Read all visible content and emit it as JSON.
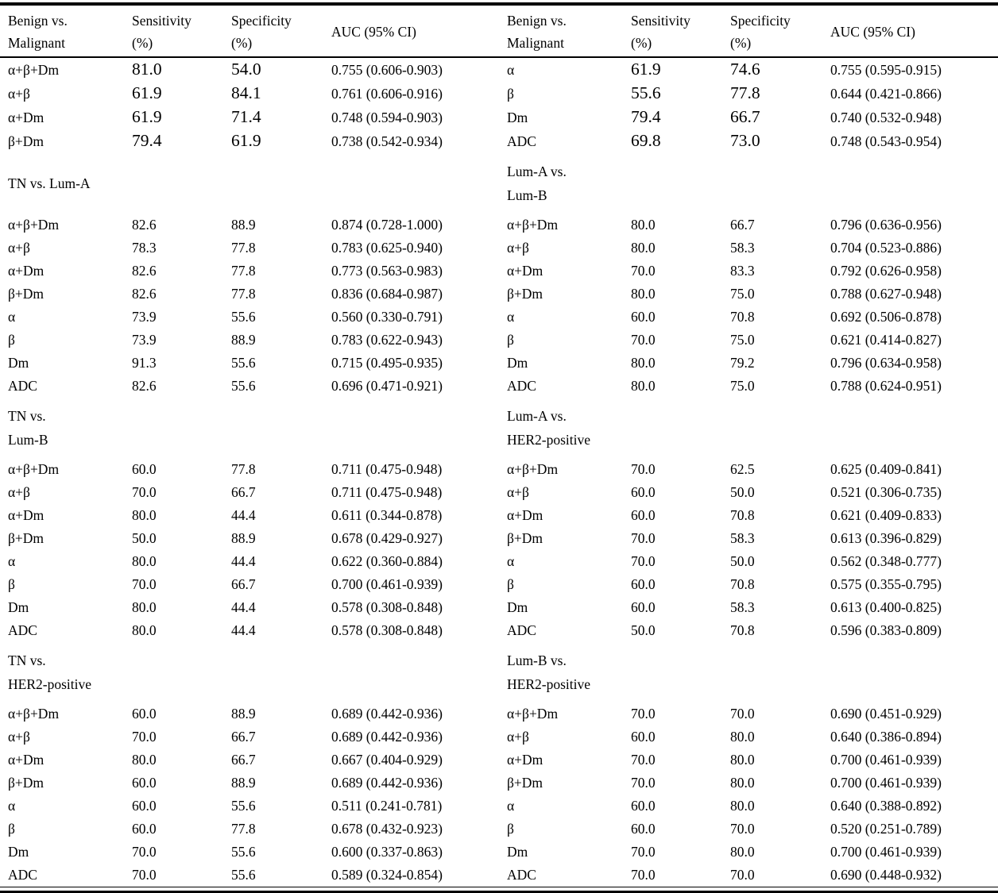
{
  "table": {
    "header": {
      "comparison_line1": "Benign vs.",
      "comparison_line2": "Malignant",
      "sensitivity_line1": "Sensitivity",
      "sensitivity_unit": "(%)",
      "specificity_line1": "Specificity",
      "specificity_unit": "(%)",
      "auc": "AUC (95% CI)"
    },
    "sections": [
      {
        "large_values": true,
        "left": {
          "label_lines": [],
          "rows": [
            [
              "α+β+Dm",
              "81.0",
              "54.0",
              "0.755 (0.606-0.903)"
            ],
            [
              "α+β",
              "61.9",
              "84.1",
              "0.761 (0.606-0.916)"
            ],
            [
              "α+Dm",
              "61.9",
              "71.4",
              "0.748 (0.594-0.903)"
            ],
            [
              "β+Dm",
              "79.4",
              "61.9",
              "0.738 (0.542-0.934)"
            ]
          ]
        },
        "right": {
          "label_lines": [],
          "rows": [
            [
              "α",
              "61.9",
              "74.6",
              "0.755 (0.595-0.915)"
            ],
            [
              "β",
              "55.6",
              "77.8",
              "0.644 (0.421-0.866)"
            ],
            [
              "Dm",
              "79.4",
              "66.7",
              "0.740 (0.532-0.948)"
            ],
            [
              "ADC",
              "69.8",
              "73.0",
              "0.748 (0.543-0.954)"
            ]
          ]
        }
      },
      {
        "large_values": false,
        "left": {
          "label_lines": [
            "TN vs. Lum-A"
          ],
          "rows": [
            [
              "α+β+Dm",
              "82.6",
              "88.9",
              "0.874 (0.728-1.000)"
            ],
            [
              "α+β",
              "78.3",
              "77.8",
              "0.783 (0.625-0.940)"
            ],
            [
              "α+Dm",
              "82.6",
              "77.8",
              "0.773 (0.563-0.983)"
            ],
            [
              "β+Dm",
              "82.6",
              "77.8",
              "0.836 (0.684-0.987)"
            ],
            [
              "α",
              "73.9",
              "55.6",
              "0.560 (0.330-0.791)"
            ],
            [
              "β",
              "73.9",
              "88.9",
              "0.783 (0.622-0.943)"
            ],
            [
              "Dm",
              "91.3",
              "55.6",
              "0.715 (0.495-0.935)"
            ],
            [
              "ADC",
              "82.6",
              "55.6",
              "0.696 (0.471-0.921)"
            ]
          ]
        },
        "right": {
          "label_lines": [
            "Lum-A vs.",
            "Lum-B"
          ],
          "rows": [
            [
              "α+β+Dm",
              "80.0",
              "66.7",
              "0.796 (0.636-0.956)"
            ],
            [
              "α+β",
              "80.0",
              "58.3",
              "0.704 (0.523-0.886)"
            ],
            [
              "α+Dm",
              "70.0",
              "83.3",
              "0.792 (0.626-0.958)"
            ],
            [
              "β+Dm",
              "80.0",
              "75.0",
              "0.788 (0.627-0.948)"
            ],
            [
              "α",
              "60.0",
              "70.8",
              "0.692 (0.506-0.878)"
            ],
            [
              "β",
              "70.0",
              "75.0",
              "0.621 (0.414-0.827)"
            ],
            [
              "Dm",
              "80.0",
              "79.2",
              "0.796 (0.634-0.958)"
            ],
            [
              "ADC",
              "80.0",
              "75.0",
              "0.788 (0.624-0.951)"
            ]
          ]
        }
      },
      {
        "large_values": false,
        "left": {
          "label_lines": [
            "TN vs.",
            "Lum-B"
          ],
          "rows": [
            [
              "α+β+Dm",
              "60.0",
              "77.8",
              "0.711 (0.475-0.948)"
            ],
            [
              "α+β",
              "70.0",
              "66.7",
              "0.711 (0.475-0.948)"
            ],
            [
              "α+Dm",
              "80.0",
              "44.4",
              "0.611 (0.344-0.878)"
            ],
            [
              "β+Dm",
              "50.0",
              "88.9",
              "0.678 (0.429-0.927)"
            ],
            [
              "α",
              "80.0",
              "44.4",
              "0.622 (0.360-0.884)"
            ],
            [
              "β",
              "70.0",
              "66.7",
              "0.700 (0.461-0.939)"
            ],
            [
              "Dm",
              "80.0",
              "44.4",
              "0.578 (0.308-0.848)"
            ],
            [
              "ADC",
              "80.0",
              "44.4",
              "0.578 (0.308-0.848)"
            ]
          ]
        },
        "right": {
          "label_lines": [
            "Lum-A vs.",
            "HER2-positive"
          ],
          "rows": [
            [
              "α+β+Dm",
              "70.0",
              "62.5",
              "0.625 (0.409-0.841)"
            ],
            [
              "α+β",
              "60.0",
              "50.0",
              "0.521 (0.306-0.735)"
            ],
            [
              "α+Dm",
              "60.0",
              "70.8",
              "0.621 (0.409-0.833)"
            ],
            [
              "β+Dm",
              "70.0",
              "58.3",
              "0.613 (0.396-0.829)"
            ],
            [
              "α",
              "70.0",
              "50.0",
              "0.562 (0.348-0.777)"
            ],
            [
              "β",
              "60.0",
              "70.8",
              "0.575 (0.355-0.795)"
            ],
            [
              "Dm",
              "60.0",
              "58.3",
              "0.613 (0.400-0.825)"
            ],
            [
              "ADC",
              "50.0",
              "70.8",
              "0.596 (0.383-0.809)"
            ]
          ]
        }
      },
      {
        "large_values": false,
        "left": {
          "label_lines": [
            "TN vs.",
            "HER2-positive"
          ],
          "rows": [
            [
              "α+β+Dm",
              "60.0",
              "88.9",
              "0.689 (0.442-0.936)"
            ],
            [
              "α+β",
              "70.0",
              "66.7",
              "0.689 (0.442-0.936)"
            ],
            [
              "α+Dm",
              "80.0",
              "66.7",
              "0.667 (0.404-0.929)"
            ],
            [
              "β+Dm",
              "60.0",
              "88.9",
              "0.689 (0.442-0.936)"
            ],
            [
              "α",
              "60.0",
              "55.6",
              "0.511 (0.241-0.781)"
            ],
            [
              "β",
              "60.0",
              "77.8",
              "0.678 (0.432-0.923)"
            ],
            [
              "Dm",
              "70.0",
              "55.6",
              "0.600 (0.337-0.863)"
            ],
            [
              "ADC",
              "70.0",
              "55.6",
              "0.589 (0.324-0.854)"
            ]
          ]
        },
        "right": {
          "label_lines": [
            "Lum-B vs.",
            "HER2-positive"
          ],
          "rows": [
            [
              "α+β+Dm",
              "70.0",
              "70.0",
              "0.690 (0.451-0.929)"
            ],
            [
              "α+β",
              "60.0",
              "80.0",
              "0.640 (0.386-0.894)"
            ],
            [
              "α+Dm",
              "70.0",
              "80.0",
              "0.700 (0.461-0.939)"
            ],
            [
              "β+Dm",
              "70.0",
              "80.0",
              "0.700 (0.461-0.939)"
            ],
            [
              "α",
              "60.0",
              "80.0",
              "0.640 (0.388-0.892)"
            ],
            [
              "β",
              "60.0",
              "70.0",
              "0.520 (0.251-0.789)"
            ],
            [
              "Dm",
              "70.0",
              "80.0",
              "0.700 (0.461-0.939)"
            ],
            [
              "ADC",
              "70.0",
              "70.0",
              "0.690 (0.448-0.932)"
            ]
          ]
        }
      }
    ]
  }
}
